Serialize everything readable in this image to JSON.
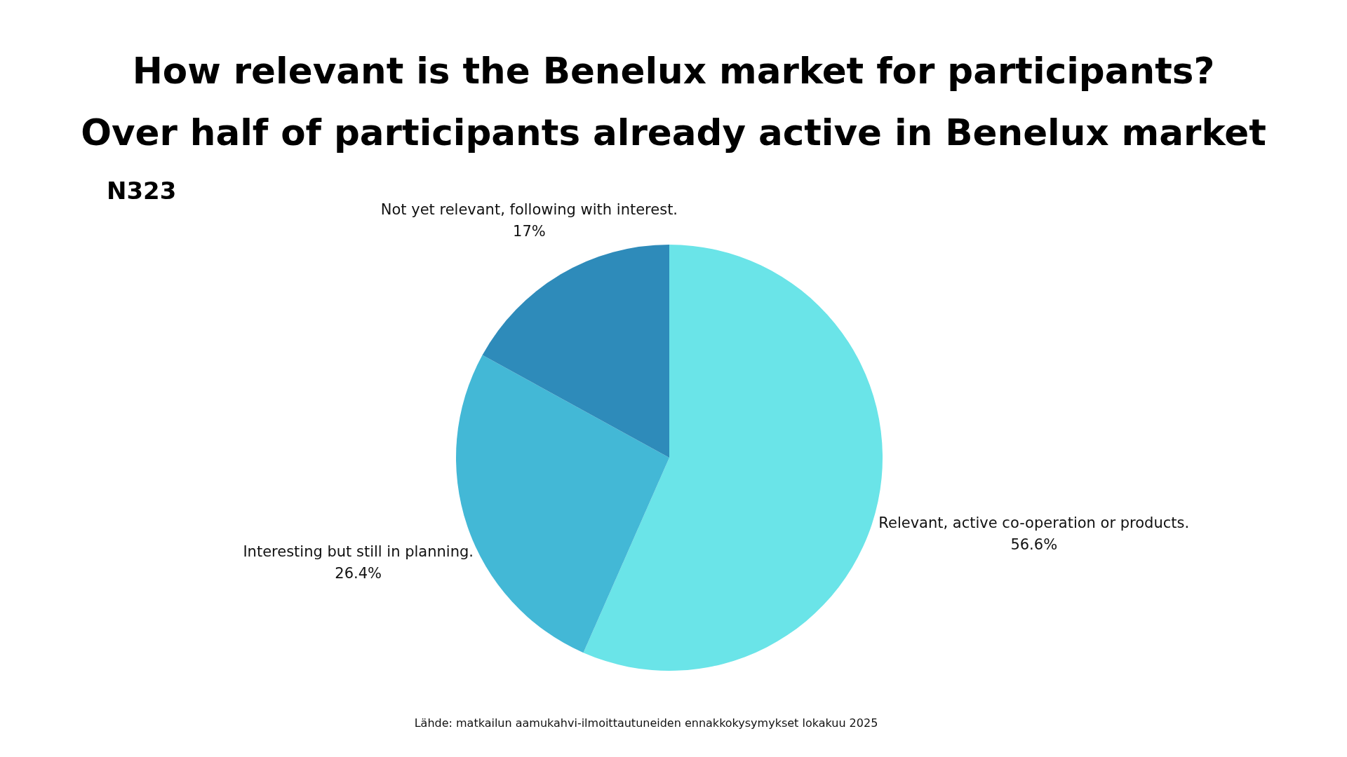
{
  "chart_data": {
    "type": "pie",
    "title": "How relevant is the Benelux market for participants?\nOver half of participants already active in Benelux market",
    "subtitle": "N323",
    "categories": [
      "Relevant, active co-operation or products.",
      "Interesting but still in planning.",
      "Not yet relevant, following with interest."
    ],
    "values": [
      56.6,
      26.4,
      17
    ],
    "colors": [
      "#6ae4e8",
      "#43b8d6",
      "#2e8bba"
    ],
    "value_labels": [
      "56.6%",
      "26.4%",
      "17%"
    ],
    "annotations": [
      "Lähde: matkailun aamukahvi-ilmoittautuneiden ennakkokysymykset lokakuu 2025"
    ]
  }
}
